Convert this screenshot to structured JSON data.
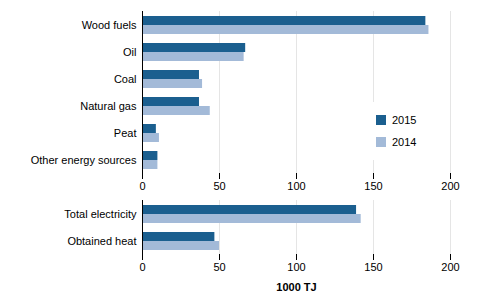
{
  "chart_data": {
    "type": "bar",
    "orientation": "horizontal",
    "categories": [
      "Wood fuels",
      "Oil",
      "Coal",
      "Natural gas",
      "Peat",
      "Other energy sources",
      null,
      "Total electricity",
      "Obtained heat"
    ],
    "series": [
      {
        "name": "2015",
        "color": "#1b5f8f",
        "values": [
          184,
          67,
          37,
          37,
          9,
          10,
          null,
          139,
          47
        ]
      },
      {
        "name": "2014",
        "color": "#a3bad8",
        "values": [
          186,
          66,
          39,
          44,
          11,
          10,
          null,
          142,
          50
        ]
      }
    ],
    "x_label": "1000 TJ",
    "xlim": [
      0,
      200
    ],
    "xticks": [
      0,
      50,
      100,
      150,
      200
    ],
    "grid": true,
    "legend": "right"
  }
}
